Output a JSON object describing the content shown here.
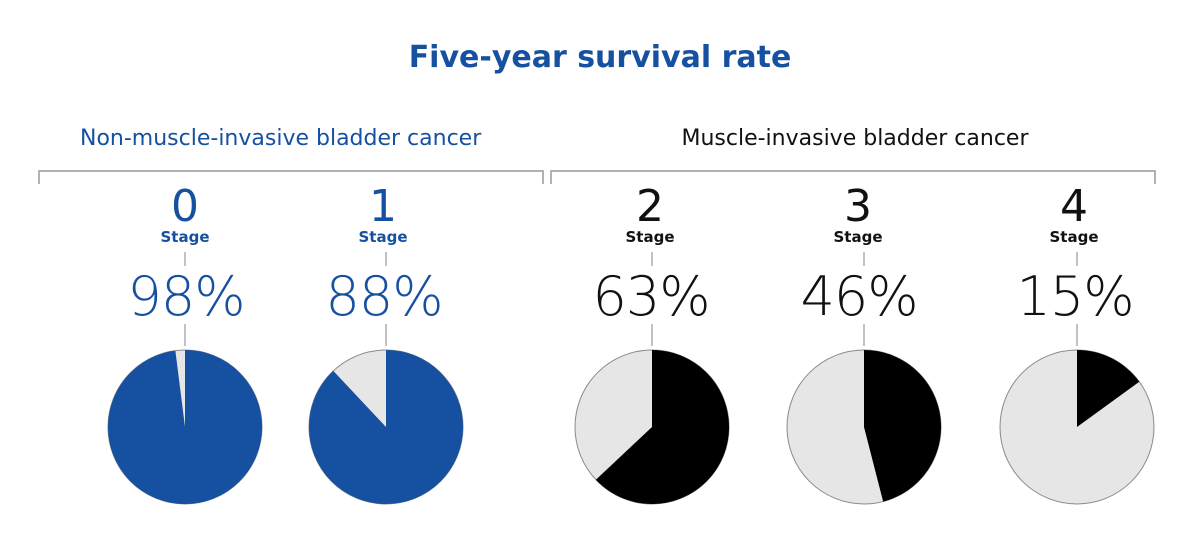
{
  "title": "Five-year survival rate",
  "groups": [
    {
      "label": "Non-muscle-invasive bladder cancer",
      "color": "#1650a0"
    },
    {
      "label": "Muscle-invasive bladder cancer",
      "color": "#111111"
    }
  ],
  "colors": {
    "blue": "#1650a0",
    "black": "#000000",
    "remainder": "#e6e6e6",
    "rule": "#999999"
  },
  "chart_data": {
    "type": "pie",
    "title": "Five-year survival rate",
    "stage_word": "Stage",
    "charts": [
      {
        "group": "Non-muscle-invasive bladder cancer",
        "stage": "0",
        "label": "98%",
        "value": 98
      },
      {
        "group": "Non-muscle-invasive bladder cancer",
        "stage": "1",
        "label": "88%",
        "value": 88
      },
      {
        "group": "Muscle-invasive bladder cancer",
        "stage": "2",
        "label": "63%",
        "value": 63
      },
      {
        "group": "Muscle-invasive bladder cancer",
        "stage": "3",
        "label": "46%",
        "value": 46
      },
      {
        "group": "Muscle-invasive bladder cancer",
        "stage": "4",
        "label": "15%",
        "value": 15
      }
    ]
  }
}
